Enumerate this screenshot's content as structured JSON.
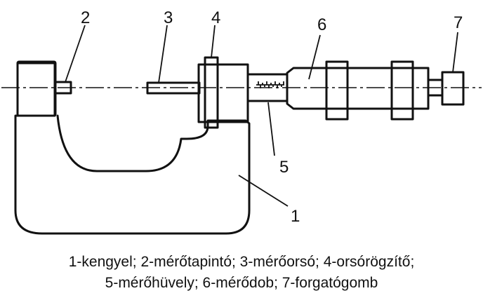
{
  "callouts": {
    "c1": "1",
    "c2": "2",
    "c3": "3",
    "c4": "4",
    "c5": "5",
    "c6": "6",
    "c7": "7"
  },
  "caption": {
    "line1": "1-kengyel; 2-mérőtapintó; 3-mérőorsó; 4-orsórögzítő;",
    "line2": "5-mérőhüvely; 6-mérődob; 7-forgatógomb"
  }
}
